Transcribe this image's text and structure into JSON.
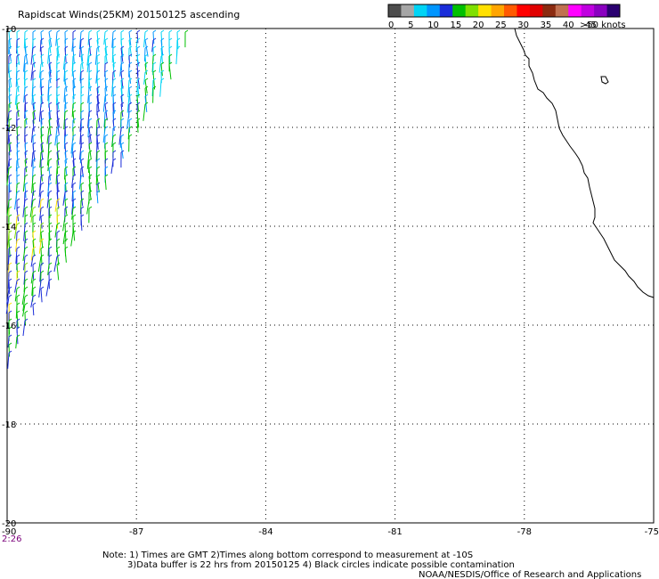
{
  "title": "Rapidscat Winds(25KM) 20150125 ascending",
  "legend": {
    "tick_labels": [
      "0",
      "5",
      "10",
      "15",
      "20",
      "25",
      "30",
      "35",
      "40",
      "45",
      ">50 knots"
    ],
    "colors": [
      "#4d4d4d",
      "#a6a6a6",
      "#00d4f5",
      "#0096ff",
      "#1a2dd9",
      "#00c000",
      "#7fe000",
      "#ffe000",
      "#ffa500",
      "#ff5a00",
      "#ff0000",
      "#e00000",
      "#8b2a10",
      "#c07050",
      "#ff00ff",
      "#c000e0",
      "#8a00c0",
      "#2a0070"
    ]
  },
  "axes": {
    "lat_labels": [
      "-10",
      "-12",
      "-14",
      "-16",
      "-18",
      "-20"
    ],
    "lon_labels": [
      "-90",
      "-87",
      "-84",
      "-81",
      "-78",
      "-75"
    ],
    "lat_range": [
      -20,
      -10
    ],
    "lon_range": [
      -90,
      -75
    ],
    "grid": "dotted"
  },
  "time_label": "2:26",
  "notes": [
    "Note: 1) Times are GMT 2)Times along bottom correspond to measurement at -10S",
    "3)Data buffer is 22 hrs from 20150125 4) Black circles indicate possible contamination",
    "NOAA/NESDIS/Office of Research and Applications"
  ],
  "wind_swath": {
    "description_colors": [
      "#00d4f5",
      "#0096ff",
      "#1a2dd9",
      "#00c000",
      "#7fe000",
      "#ffe000"
    ]
  }
}
